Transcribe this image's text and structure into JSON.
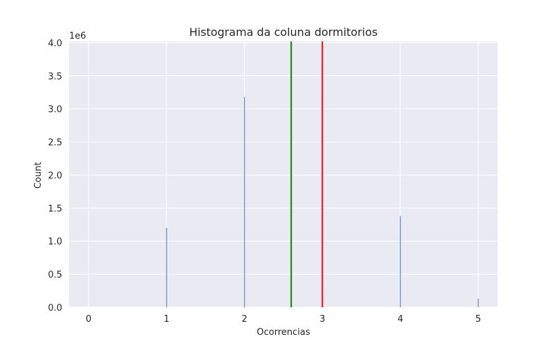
{
  "chart_data": {
    "type": "bar",
    "title": "Histograma da coluna dormitorios",
    "xlabel": "Ocorrencias",
    "ylabel": "Count",
    "y_offset_label": "1e6",
    "xlim": [
      -0.25,
      5.25
    ],
    "ylim": [
      0,
      4.0
    ],
    "y_scale_factor": 1000000,
    "x_ticks": [
      "0",
      "1",
      "2",
      "3",
      "4",
      "5"
    ],
    "y_ticks": [
      "0.0",
      "0.5",
      "1.0",
      "1.5",
      "2.0",
      "2.5",
      "3.0",
      "3.5",
      "4.0"
    ],
    "grid": true,
    "bars": [
      {
        "x": 1,
        "value": 1.2
      },
      {
        "x": 2,
        "value": 3.18
      },
      {
        "x": 4,
        "value": 1.38
      },
      {
        "x": 5,
        "value": 0.13
      }
    ],
    "vlines": [
      {
        "x": 2.6,
        "color": "#008000"
      },
      {
        "x": 3.0,
        "color": "#ff0000"
      }
    ],
    "colors": {
      "bar": "#4c72b0",
      "axes_bg": "#eaeaf2",
      "grid": "#ffffff"
    }
  }
}
